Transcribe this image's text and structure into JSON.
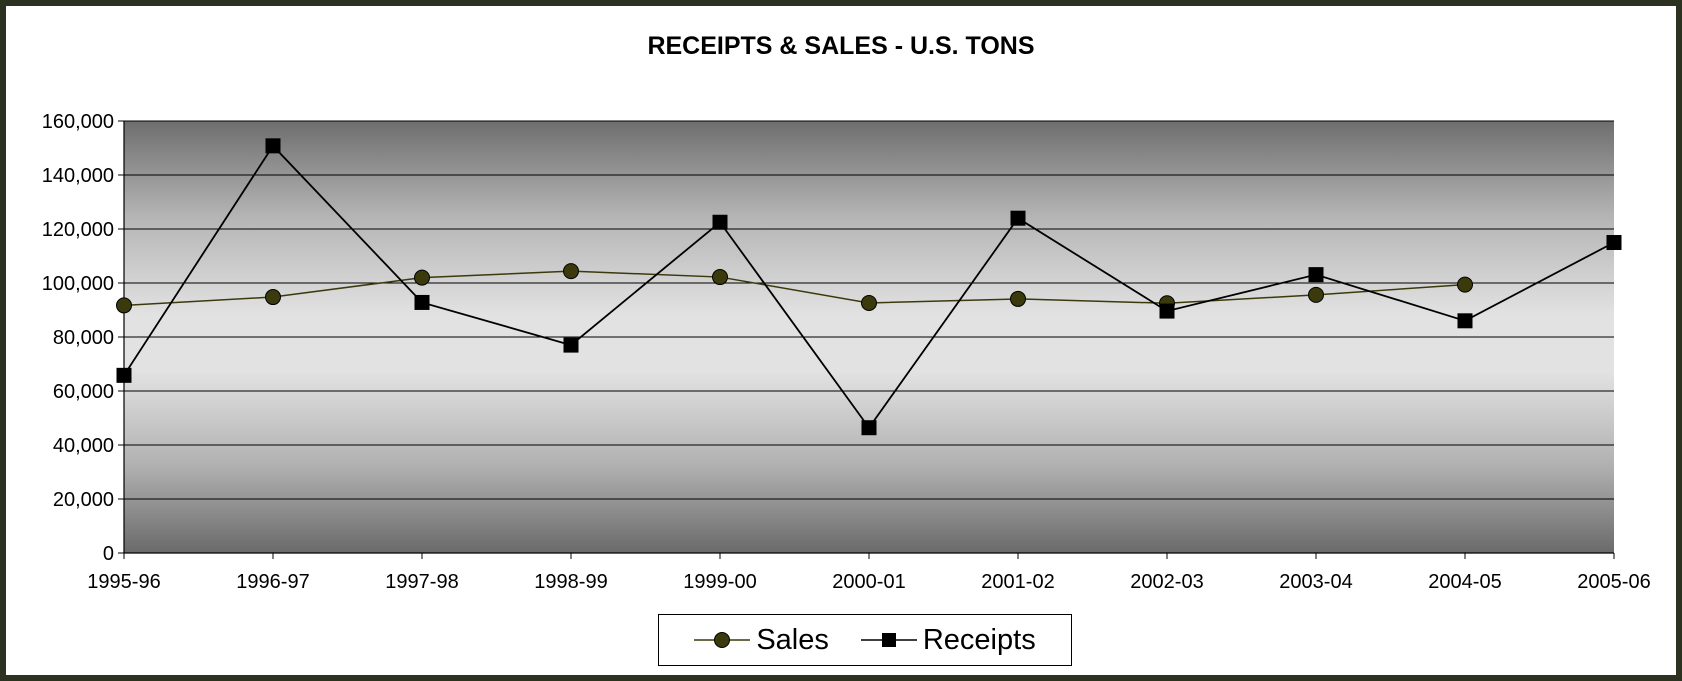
{
  "chart_data": {
    "type": "line",
    "title": "RECEIPTS & SALES - U.S. TONS",
    "xlabel": "",
    "ylabel": "",
    "categories": [
      "1995-96",
      "1996-97",
      "1997-98",
      "1998-99",
      "1999-00",
      "2000-01",
      "2001-02",
      "2002-03",
      "2003-04",
      "2004-05",
      "2005-06"
    ],
    "ylim": [
      0,
      160000
    ],
    "yticks": [
      0,
      20000,
      40000,
      60000,
      80000,
      100000,
      120000,
      140000,
      160000
    ],
    "ytick_labels": [
      "0",
      "20,000",
      "40,000",
      "60,000",
      "80,000",
      "100,000",
      "120,000",
      "140,000",
      "160,000"
    ],
    "grid": true,
    "legend_position": "bottom",
    "series": [
      {
        "name": "Sales",
        "color": "#3b3a0c",
        "marker": "circle",
        "values": [
          91700,
          94800,
          102000,
          104400,
          102200,
          92600,
          94100,
          92500,
          95600,
          99400,
          null
        ]
      },
      {
        "name": "Receipts",
        "color": "#000000",
        "marker": "square",
        "values": [
          65800,
          150800,
          92800,
          77000,
          122500,
          46400,
          124000,
          89600,
          103100,
          86000,
          115000
        ]
      }
    ]
  }
}
